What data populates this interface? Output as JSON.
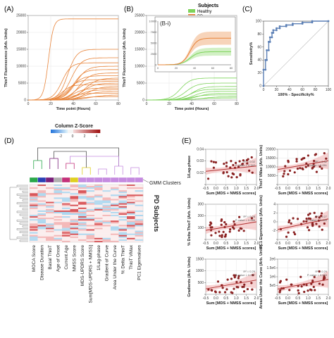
{
  "figure": {
    "panel_labels": [
      "(A)",
      "(B)",
      "(C)",
      "(D)",
      "(E)",
      "(B-i)"
    ],
    "legend": {
      "title": "Subjects",
      "entries": [
        {
          "label": "Healthy",
          "color": "#7dd35a"
        },
        {
          "label": "PD",
          "color": "#e8843a"
        }
      ]
    },
    "colors": {
      "pd": "#e8843a",
      "healthy": "#7dd35a",
      "roc": "#5b7fb5",
      "red": "#b03030",
      "band": "#f2b6b6"
    }
  },
  "chart_data": [
    {
      "id": "A",
      "type": "line",
      "xlabel": "Time point (Hours)",
      "ylabel": "ThioT Fluorescence (Arb. Units)",
      "xlim": [
        0,
        80
      ],
      "ylim": [
        0,
        25000
      ],
      "xticks": [
        "0",
        "20",
        "40",
        "60",
        "80"
      ],
      "yticks": [
        "0",
        "5000",
        "10000",
        "15000",
        "20000",
        "25000"
      ],
      "grid": true,
      "series_color": "#e8843a",
      "curves": [
        {
          "plateau": 24000,
          "mid": 18,
          "k": 0.45
        },
        {
          "plateau": 15000,
          "mid": 35,
          "k": 0.25
        },
        {
          "plateau": 12500,
          "mid": 38,
          "k": 0.22
        },
        {
          "plateau": 11000,
          "mid": 30,
          "k": 0.25
        },
        {
          "plateau": 10000,
          "mid": 42,
          "k": 0.2
        },
        {
          "plateau": 9000,
          "mid": 40,
          "k": 0.22
        },
        {
          "plateau": 8000,
          "mid": 45,
          "k": 0.2
        },
        {
          "plateau": 7200,
          "mid": 38,
          "k": 0.2
        },
        {
          "plateau": 6500,
          "mid": 50,
          "k": 0.18
        },
        {
          "plateau": 6000,
          "mid": 35,
          "k": 0.22
        },
        {
          "plateau": 5500,
          "mid": 42,
          "k": 0.2
        },
        {
          "plateau": 5000,
          "mid": 48,
          "k": 0.18
        },
        {
          "plateau": 4500,
          "mid": 30,
          "k": 0.25
        },
        {
          "plateau": 4000,
          "mid": 52,
          "k": 0.18
        },
        {
          "plateau": 3500,
          "mid": 40,
          "k": 0.2
        },
        {
          "plateau": 3000,
          "mid": 45,
          "k": 0.2
        },
        {
          "plateau": 2500,
          "mid": 50,
          "k": 0.18
        },
        {
          "plateau": 2000,
          "mid": 38,
          "k": 0.2
        },
        {
          "plateau": 1500,
          "mid": 55,
          "k": 0.15
        },
        {
          "plateau": 1000,
          "mid": 45,
          "k": 0.18
        }
      ]
    },
    {
      "id": "B",
      "type": "line",
      "xlabel": "Time point (Hours)",
      "ylabel": "ThioT Fluorescence (Arb. Units)",
      "xlim": [
        0,
        80
      ],
      "ylim": [
        0,
        25000
      ],
      "xticks": [
        "0",
        "20",
        "40",
        "60",
        "80"
      ],
      "yticks": [
        "0",
        "5000",
        "10000",
        "15000",
        "20000",
        "25000"
      ],
      "grid": true,
      "series_color": "#7dd35a",
      "curves": [
        {
          "plateau": 6500,
          "mid": 30,
          "k": 0.22
        },
        {
          "plateau": 5000,
          "mid": 35,
          "k": 0.2
        },
        {
          "plateau": 4000,
          "mid": 40,
          "k": 0.2
        },
        {
          "plateau": 3200,
          "mid": 38,
          "k": 0.2
        },
        {
          "plateau": 2600,
          "mid": 42,
          "k": 0.2
        },
        {
          "plateau": 2000,
          "mid": 45,
          "k": 0.18
        },
        {
          "plateau": 1500,
          "mid": 40,
          "k": 0.2
        },
        {
          "plateau": 1000,
          "mid": 50,
          "k": 0.15
        },
        {
          "plateau": 600,
          "mid": 45,
          "k": 0.15
        }
      ],
      "inset": {
        "label": "(B-i)",
        "xlim": [
          0,
          80
        ],
        "ylim": [
          0,
          10000
        ],
        "xticks": [
          "0",
          "20",
          "40",
          "60",
          "80"
        ],
        "yticks": [
          "0",
          "2500",
          "5000",
          "7500",
          "10000"
        ],
        "pd_mean": {
          "plateau": 6100,
          "mid": 35,
          "k": 0.25,
          "band": 1500
        },
        "healthy_mean": {
          "plateau": 3000,
          "mid": 35,
          "k": 0.22,
          "band": 900
        }
      }
    },
    {
      "id": "C",
      "type": "line",
      "xlabel": "100% - Specificity%",
      "ylabel": "Sensitivity%",
      "xlim": [
        0,
        100
      ],
      "ylim": [
        0,
        100
      ],
      "xticks": [
        "0",
        "20",
        "40",
        "60",
        "80",
        "100"
      ],
      "yticks": [
        "0",
        "20",
        "40",
        "60",
        "80",
        "100"
      ],
      "x": [
        0,
        0,
        3,
        3,
        5,
        5,
        8,
        8,
        10,
        10,
        13,
        13,
        15,
        15,
        20,
        20,
        25,
        25,
        35,
        35,
        45,
        45,
        60,
        60,
        75,
        75,
        100
      ],
      "y": [
        0,
        25,
        25,
        40,
        40,
        55,
        55,
        68,
        68,
        75,
        75,
        82,
        82,
        86,
        86,
        89,
        89,
        92,
        92,
        94,
        94,
        96,
        96,
        98,
        98,
        100,
        100
      ]
    },
    {
      "id": "D",
      "type": "heatmap",
      "colorbar_title": "Column Z-Score",
      "colorbar_ticks": [
        "-2",
        "0",
        "2",
        "4"
      ],
      "cluster_label": "GMM Clusters",
      "row_label": "PD Subjects",
      "cluster_colors": [
        "#2aa84a",
        "#2a3fb5",
        "#7a1f7a",
        "#b0b0b0",
        "#c4307a",
        "#e0d020",
        "#c58be0",
        "#c58be0",
        "#c58be0",
        "#c58be0",
        "#c58be0",
        "#c58be0"
      ],
      "columns": [
        "MOCA Score",
        "Disease Duration",
        "Basal ThioT",
        "Age of Onset",
        "Current Age",
        "NMSS Score",
        "MDS-UPDRS Score",
        "Sum[MDS-UPDRS + NMSS]",
        "1/Lag-phase",
        "Gradient of Curve",
        "Area Under the Curve",
        "% Delta ThioT",
        "ThioT VMax",
        "PC1 Eigenvalues"
      ]
    },
    {
      "id": "E",
      "type": "scatter",
      "xlabel": "Sum [MDS + NMSS scores]",
      "panels": [
        {
          "ylabel": "1/Lag-phase",
          "r2": "R² = 0.02",
          "p": "P-value = 0.342",
          "xlim": [
            -0.5,
            2.0
          ],
          "ylim": [
            0.01,
            0.05
          ],
          "yticks": [
            "0.02",
            "0.03",
            "0.04"
          ],
          "xticks": [
            "-0.5",
            "0.0",
            "0.5",
            "1.0",
            "1.5",
            "2.0"
          ],
          "fit": [
            0.025,
            0.031
          ]
        },
        {
          "ylabel": "ThioT VMax (Arb. Units)",
          "r2": "R² = 0.32",
          "p": "P-value = 0.051",
          "xlim": [
            -0.5,
            2.0
          ],
          "ylim": [
            0,
            20000
          ],
          "yticks": [
            "5000",
            "10000",
            "15000",
            "20000"
          ],
          "xticks": [
            "-0.5",
            "0.0",
            "0.5",
            "1.0",
            "1.5",
            "2.0"
          ],
          "fit": [
            8500,
            13500
          ]
        },
        {
          "ylabel": "% Delta ThioT (Arb. Units)",
          "r2": "R² = 0.28",
          "p": "P-value = 0.086",
          "xlim": [
            -0.5,
            2.0
          ],
          "ylim": [
            0,
            350
          ],
          "yticks": [
            "100",
            "200",
            "300"
          ],
          "xticks": [
            "-0.5",
            "0.0",
            "0.5",
            "1.0",
            "1.5",
            "2.0"
          ],
          "fit": [
            90,
            175
          ]
        },
        {
          "ylabel": "PC1 Eigenvalues (Arb. Units)",
          "r2": "R² = 0.27",
          "p": "P-value = 0.034",
          "xlim": [
            -0.5,
            2.0
          ],
          "ylim": [
            -2,
            4
          ],
          "yticks": [
            "-2",
            "0",
            "2",
            "4"
          ],
          "xticks": [
            "-0.5",
            "0.0",
            "0.5",
            "1.0",
            "1.5",
            "2.0"
          ],
          "fit": [
            -0.3,
            1.5
          ]
        },
        {
          "ylabel": "Gradients (Arb. Units)",
          "r2": "R² = 0.29",
          "p": "P-value = 0.027",
          "xlim": [
            -0.5,
            2.0
          ],
          "ylim": [
            0,
            1600
          ],
          "yticks": [
            "500",
            "1000",
            "1500"
          ],
          "xticks": [
            "-0.5",
            "0.0",
            "0.5",
            "1.0",
            "1.5",
            "2.0"
          ],
          "fit": [
            250,
            650
          ]
        },
        {
          "ylabel": "Areas Under the Curve (Arb. Units)",
          "r2": "R² = 0.29",
          "p": "P-value = 0.023",
          "xlim": [
            -0.5,
            2.0
          ],
          "ylim": [
            0,
            2000000
          ],
          "yticks": [
            "5e5",
            "1e6",
            "1.5e6",
            "2e6"
          ],
          "xticks": [
            "-0.5",
            "0.0",
            "0.5",
            "1.0",
            "1.5",
            "2.0"
          ],
          "fit": [
            300000,
            850000
          ]
        }
      ]
    }
  ]
}
